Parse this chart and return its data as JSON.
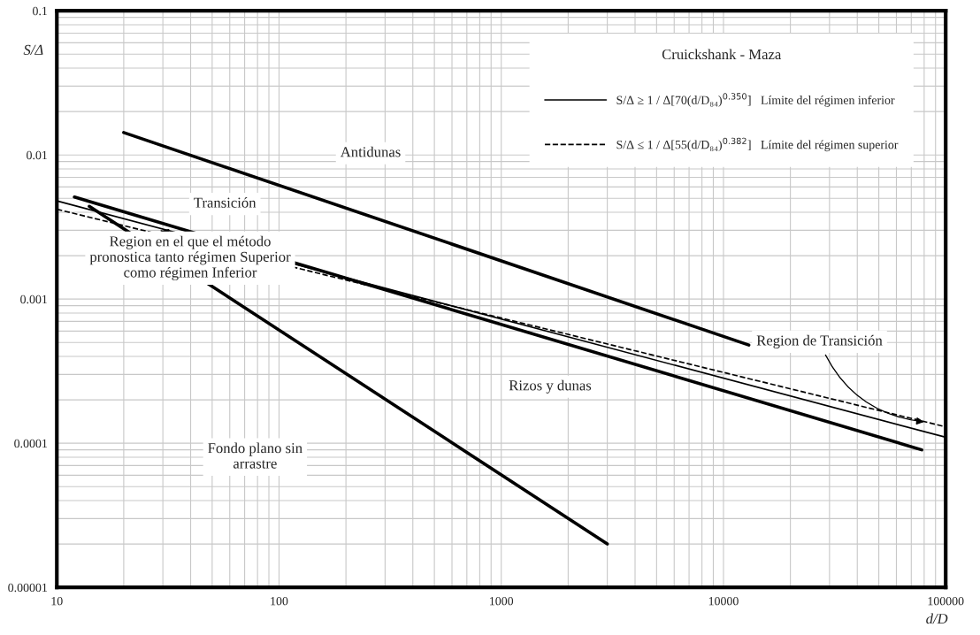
{
  "chart_data": {
    "type": "line",
    "log": "xy",
    "xlabel": "d/D",
    "ylabel": "S/Δ",
    "legend_title": "Cruickshank - Maza",
    "legend": "top right",
    "grid": true,
    "xlim": [
      10,
      100000
    ],
    "xticks": [
      10,
      100,
      1000,
      10000,
      100000
    ],
    "ylim": [
      1e-05,
      0.1
    ],
    "yticks": [
      {
        "value": 1e-05,
        "label": "0.00001"
      },
      {
        "value": 0.0001,
        "label": "0.0001"
      },
      {
        "value": 0.001,
        "label": "0.001"
      },
      {
        "value": 0.01,
        "label": "0.01"
      },
      {
        "value": 0.1,
        "label": "0.1"
      }
    ],
    "series": [
      {
        "x": [
          20,
          13000
        ],
        "values": [
          0.0143,
          0.00048
        ],
        "color": "#000000"
      },
      {
        "x": [
          12,
          78000
        ],
        "values": [
          0.0051,
          9e-05
        ],
        "color": "#000000"
      },
      {
        "x": [
          14,
          3000
        ],
        "values": [
          0.0044,
          2e-05
        ],
        "color": "#000000"
      },
      {
        "name": "S/Δ ≥ 1 / Δ[70(d/D₈₄)$^{0.350}$]   Límite del régimen inferior",
        "x": [
          10,
          100000
        ],
        "values": [
          0.0048,
          0.00011
        ],
        "color": "#000000",
        "line_style": "solid"
      },
      {
        "name": "S/Δ ≤ 1 / Δ[55(d/D₈₄)$^{0.382}$]   Límite del régimen superior",
        "x": [
          10,
          100000
        ],
        "values": [
          0.0042,
          0.00013
        ],
        "color": "#000000",
        "line_style": "dashed"
      }
    ],
    "annotations": [
      "Antidunas",
      "Transición",
      "Rizos y dunas",
      "Fondo plano sin\narrastre",
      {
        "text": "Region en el que el método\npronostica tanto régimen Superior\ncomo régimen Inferior",
        "x": 28.7,
        "y": 0.003
      },
      {
        "text": "Region de Transición",
        "x": 82000,
        "y": 0.00014
      }
    ]
  }
}
